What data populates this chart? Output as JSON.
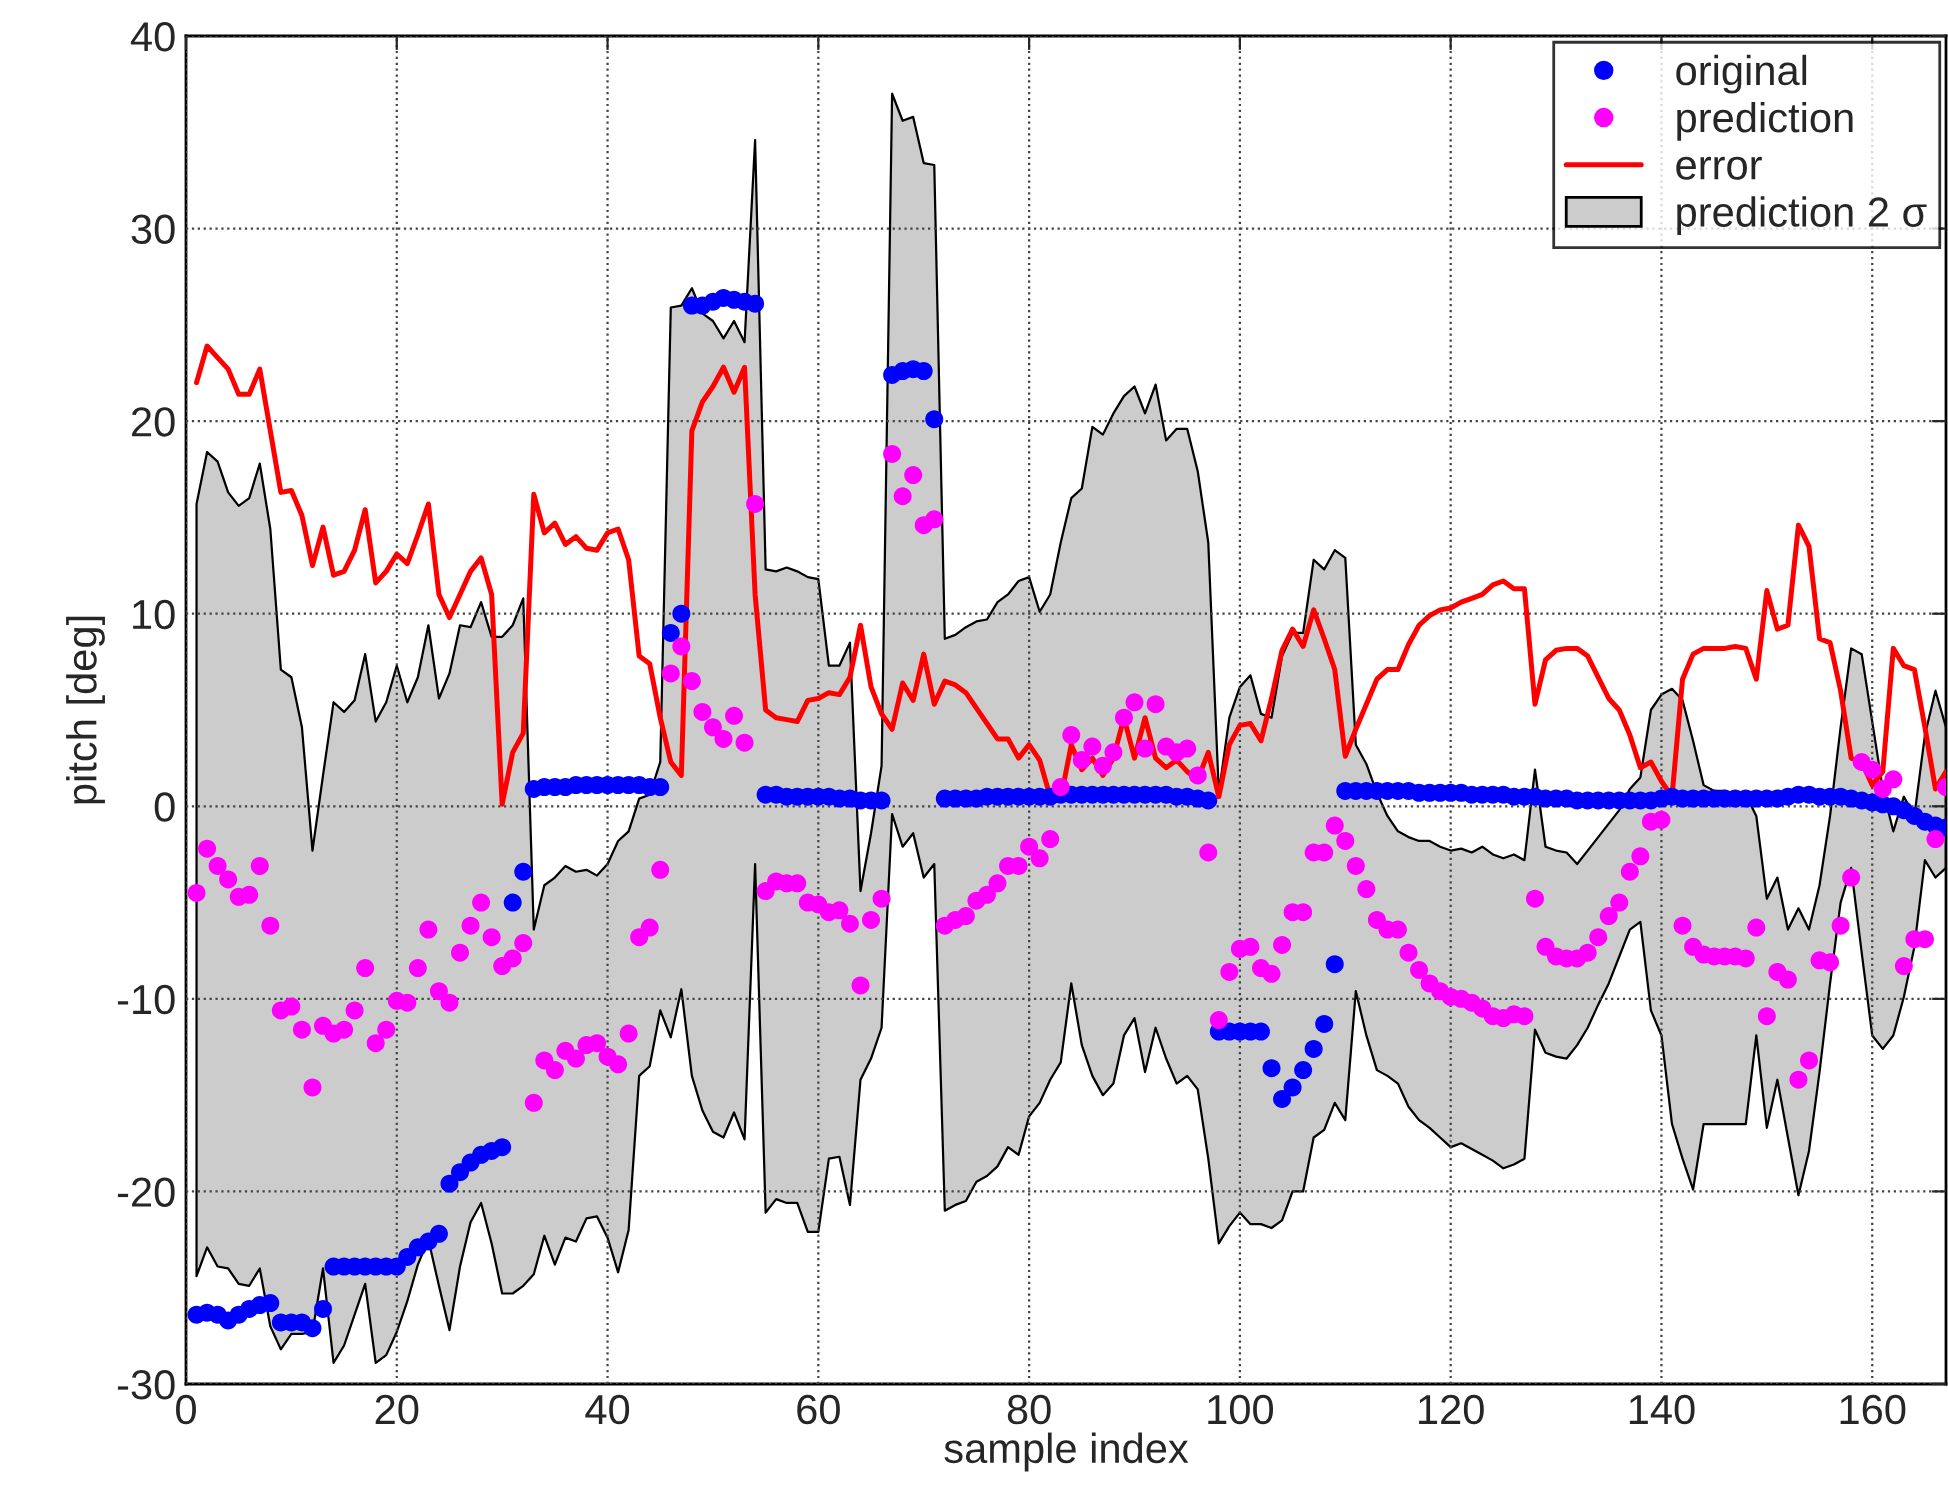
{
  "chart_data": {
    "type": "scatter",
    "xlabel": "sample index",
    "ylabel": "pitch [deg]",
    "x": [
      1,
      2,
      3,
      4,
      5,
      6,
      7,
      8,
      9,
      10,
      11,
      12,
      13,
      14,
      15,
      16,
      17,
      18,
      19,
      20,
      21,
      22,
      23,
      24,
      25,
      26,
      27,
      28,
      29,
      30,
      31,
      32,
      33,
      34,
      35,
      36,
      37,
      38,
      39,
      40,
      41,
      42,
      43,
      44,
      45,
      46,
      47,
      48,
      49,
      50,
      51,
      52,
      53,
      54,
      55,
      56,
      57,
      58,
      59,
      60,
      61,
      62,
      63,
      64,
      65,
      66,
      67,
      68,
      69,
      70,
      71,
      72,
      73,
      74,
      75,
      76,
      77,
      78,
      79,
      80,
      81,
      82,
      83,
      84,
      85,
      86,
      87,
      88,
      89,
      90,
      91,
      92,
      93,
      94,
      95,
      96,
      97,
      98,
      99,
      100,
      101,
      102,
      103,
      104,
      105,
      106,
      107,
      108,
      109,
      110,
      111,
      112,
      113,
      114,
      115,
      116,
      117,
      118,
      119,
      120,
      121,
      122,
      123,
      124,
      125,
      126,
      127,
      128,
      129,
      130,
      131,
      132,
      133,
      134,
      135,
      136,
      137,
      138,
      139,
      140,
      141,
      142,
      143,
      144,
      145,
      146,
      147,
      148,
      149,
      150,
      151,
      152,
      153,
      154,
      155,
      156,
      157,
      158,
      159,
      160,
      161,
      162,
      163,
      164,
      165,
      166,
      167
    ],
    "xlim": [
      0,
      167
    ],
    "xticks": [
      0,
      20,
      40,
      60,
      80,
      100,
      120,
      140,
      160
    ],
    "ylim": [
      -30,
      40
    ],
    "yticks": [
      -30,
      -20,
      -10,
      0,
      10,
      20,
      30,
      40
    ],
    "grid": true,
    "legend": "top right",
    "marker": "circle",
    "series": [
      {
        "name": "prediction 2 σ",
        "type": "area",
        "color": "#cccccc",
        "values": [
          null,
          null,
          null,
          null,
          null,
          null,
          null,
          null,
          null,
          null,
          null,
          null,
          null,
          null,
          null,
          null,
          null,
          null,
          null,
          null,
          null,
          null,
          null,
          null,
          null,
          null,
          null,
          null,
          null,
          null,
          null,
          null,
          null,
          null,
          null,
          null,
          null,
          null,
          null,
          null,
          null,
          null,
          null,
          null,
          null,
          null,
          null,
          null,
          null,
          null,
          null,
          null,
          null,
          null,
          null,
          null,
          null,
          null,
          null,
          null,
          null,
          null,
          null,
          null,
          null,
          null,
          null,
          null,
          null,
          null,
          null,
          null,
          null,
          null,
          null,
          null,
          null,
          null,
          null,
          null,
          null,
          null,
          null,
          null,
          null,
          null,
          null,
          null,
          null,
          null,
          null,
          null,
          null,
          null,
          null,
          null,
          null,
          null,
          null,
          null,
          null,
          null,
          null,
          null,
          null,
          null,
          null,
          null,
          null,
          null,
          null,
          null,
          null,
          null,
          null,
          null,
          null,
          null,
          null,
          null,
          null,
          null,
          null,
          null,
          null,
          null,
          null,
          null,
          null,
          null,
          null,
          null,
          null,
          null,
          null,
          null,
          null,
          null,
          null,
          null,
          null,
          null,
          null,
          null,
          null,
          null,
          null,
          null,
          null,
          null,
          null,
          null,
          null,
          null,
          null,
          null,
          null,
          null,
          null,
          null,
          null,
          null,
          null,
          null,
          null,
          null,
          null
        ],
        "upper": [
          15.7,
          18.4,
          17.9,
          16.3,
          15.6,
          16.0,
          17.8,
          14.4,
          7.1,
          6.7,
          4.1,
          -2.3,
          1.6,
          5.4,
          4.9,
          5.5,
          7.9,
          4.4,
          5.4,
          7.3,
          5.4,
          6.7,
          9.4,
          5.6,
          6.9,
          9.4,
          9.3,
          10.6,
          8.8,
          8.8,
          9.4,
          10.8,
          -6.4,
          -4.1,
          -3.7,
          -3.1,
          -3.4,
          -3.3,
          -3.6,
          -3.0,
          -1.8,
          -1.3,
          0.4,
          0.6,
          2.3,
          25.9,
          26.0,
          26.9,
          25.6,
          25.2,
          24.3,
          25.2,
          24.1,
          34.6,
          12.3,
          12.2,
          12.4,
          12.2,
          11.9,
          11.8,
          7.3,
          7.3,
          8.5,
          -4.4,
          -1.4,
          2.1,
          37.0,
          35.6,
          35.8,
          33.4,
          33.3,
          8.7,
          8.9,
          9.3,
          9.6,
          9.7,
          10.6,
          11.0,
          11.7,
          11.9,
          10.1,
          11.0,
          13.7,
          16.0,
          16.5,
          19.7,
          19.3,
          20.4,
          21.3,
          21.8,
          20.4,
          21.9,
          19.0,
          19.6,
          19.6,
          17.4,
          13.7,
          0.7,
          4.6,
          6.2,
          6.8,
          4.8,
          4.6,
          7.8,
          9.0,
          9.0,
          12.8,
          12.3,
          13.3,
          12.9,
          3.2,
          2.2,
          0.7,
          -0.5,
          -1.3,
          -1.6,
          -1.8,
          -1.8,
          -2.1,
          -2.3,
          -2.2,
          -2.4,
          -2.1,
          -2.5,
          -2.7,
          -2.5,
          -2.8,
          1.9,
          -2.1,
          -2.3,
          -2.4,
          -3.0,
          -2.3,
          -1.6,
          -0.9,
          -0.2,
          0.9,
          1.5,
          5.0,
          5.8,
          6.1,
          5.5,
          3.4,
          1.1,
          0.8,
          0.8,
          0.6,
          0.6,
          -0.5,
          -4.8,
          -3.7,
          -6.4,
          -5.3,
          -6.4,
          -4.1,
          -0.5,
          4.1,
          8.2,
          7.9,
          4.4,
          0.9,
          -1.3,
          0.5,
          -0.5,
          3.7,
          6.0,
          4.1
        ],
        "lower": [
          -24.4,
          -22.9,
          -23.9,
          -24.0,
          -24.8,
          -24.9,
          -24.0,
          -27.0,
          -28.2,
          -27.4,
          -27.4,
          -27.3,
          -24.0,
          -28.9,
          -28.0,
          -26.4,
          -24.8,
          -28.9,
          -28.5,
          -27.3,
          -25.7,
          -23.8,
          -22.5,
          -24.9,
          -27.2,
          -23.9,
          -21.6,
          -20.6,
          -22.7,
          -25.3,
          -25.3,
          -24.9,
          -24.3,
          -22.3,
          -23.8,
          -22.4,
          -22.6,
          -21.4,
          -21.3,
          -22.4,
          -24.2,
          -22.0,
          -14.0,
          -13.5,
          -10.6,
          -12.0,
          -9.5,
          -14.0,
          -15.8,
          -16.9,
          -17.2,
          -15.9,
          -17.3,
          -3.0,
          -21.1,
          -20.4,
          -20.6,
          -20.6,
          -22.1,
          -22.1,
          -18.3,
          -18.2,
          -20.7,
          -14.2,
          -13.1,
          -11.5,
          -0.4,
          -2.1,
          -1.4,
          -3.7,
          -3.0,
          -21.0,
          -20.7,
          -20.5,
          -19.5,
          -19.2,
          -18.7,
          -17.7,
          -18.1,
          -16.1,
          -15.4,
          -14.2,
          -13.3,
          -9.2,
          -12.4,
          -14.0,
          -15.0,
          -14.4,
          -11.9,
          -11.0,
          -13.8,
          -11.5,
          -13.1,
          -14.4,
          -14.0,
          -14.7,
          -18.3,
          -22.7,
          -21.8,
          -21.1,
          -21.7,
          -21.7,
          -21.9,
          -21.5,
          -20.0,
          -20.0,
          -17.2,
          -16.8,
          -15.4,
          -16.3,
          -9.6,
          -11.9,
          -13.7,
          -14.0,
          -14.4,
          -15.6,
          -16.3,
          -16.7,
          -17.2,
          -17.7,
          -17.5,
          -17.8,
          -18.1,
          -18.4,
          -18.8,
          -18.6,
          -18.3,
          -11.6,
          -12.8,
          -13.0,
          -13.1,
          -12.4,
          -11.5,
          -10.3,
          -9.2,
          -7.8,
          -6.4,
          -6.0,
          -10.6,
          -11.9,
          -16.5,
          -18.3,
          -19.9,
          -16.5,
          -16.5,
          -16.5,
          -16.5,
          -16.5,
          -11.9,
          -16.7,
          -14.2,
          -17.2,
          -20.2,
          -17.9,
          -13.8,
          -9.2,
          -5.0,
          -3.2,
          -7.6,
          -11.9,
          -12.6,
          -11.9,
          -9.9,
          -7.3,
          -2.8,
          -3.7,
          -3.2
        ]
      },
      {
        "name": "error",
        "type": "line",
        "marker": "none",
        "color": "#ff0000",
        "values": [
          22.0,
          23.9,
          23.3,
          22.7,
          21.4,
          21.4,
          22.7,
          19.5,
          16.3,
          16.4,
          15.1,
          12.5,
          14.5,
          12.0,
          12.2,
          13.3,
          15.4,
          11.6,
          12.2,
          13.1,
          12.6,
          14.1,
          15.7,
          11.0,
          9.8,
          11.0,
          12.2,
          12.9,
          11.0,
          0.1,
          2.8,
          3.8,
          16.2,
          14.2,
          14.7,
          13.6,
          14.0,
          13.4,
          13.3,
          14.2,
          14.4,
          12.8,
          7.8,
          7.4,
          4.6,
          2.3,
          1.6,
          19.5,
          21.0,
          21.8,
          22.8,
          21.5,
          22.8,
          11.0,
          5.0,
          4.6,
          4.5,
          4.4,
          5.5,
          5.6,
          5.9,
          5.8,
          6.7,
          9.4,
          6.2,
          4.8,
          4.0,
          6.4,
          5.5,
          7.9,
          5.3,
          6.5,
          6.3,
          5.9,
          5.1,
          4.3,
          3.5,
          3.5,
          2.5,
          3.2,
          2.4,
          0.5,
          0.4,
          3.2,
          1.9,
          2.5,
          1.6,
          2.5,
          4.6,
          2.5,
          4.6,
          2.5,
          2.0,
          2.4,
          1.8,
          1.4,
          2.8,
          0.5,
          3.2,
          4.2,
          4.3,
          3.4,
          5.6,
          8.1,
          9.2,
          8.3,
          10.2,
          8.7,
          7.1,
          2.6,
          4.0,
          5.3,
          6.6,
          7.1,
          7.1,
          8.4,
          9.4,
          9.9,
          10.2,
          10.3,
          10.6,
          10.8,
          11.0,
          11.5,
          11.7,
          11.3,
          11.3,
          5.3,
          7.6,
          8.1,
          8.2,
          8.2,
          7.8,
          6.7,
          5.6,
          5.0,
          3.7,
          2.0,
          2.3,
          1.3,
          0.5,
          6.6,
          7.9,
          8.2,
          8.2,
          8.2,
          8.3,
          8.2,
          6.6,
          11.2,
          9.2,
          9.4,
          14.6,
          13.5,
          8.7,
          8.5,
          6.0,
          2.5,
          2.3,
          1.1,
          1.8,
          8.2,
          7.3,
          7.1,
          4.1,
          0.9,
          1.8
        ]
      },
      {
        "name": "original",
        "color": "#0000ff",
        "values": [
          -26.4,
          -26.3,
          -26.4,
          -26.7,
          -26.4,
          -26.1,
          -25.9,
          -25.8,
          -26.8,
          -26.8,
          -26.8,
          -27.1,
          -26.1,
          -23.9,
          -23.9,
          -23.9,
          -23.9,
          -23.9,
          -23.9,
          -23.9,
          -23.4,
          -22.9,
          -22.6,
          -22.2,
          -19.6,
          -19.0,
          -18.5,
          -18.1,
          -17.9,
          -17.7,
          -5.0,
          -3.4,
          0.9,
          1.0,
          1.0,
          1.0,
          1.1,
          1.1,
          1.1,
          1.1,
          1.1,
          1.1,
          1.1,
          1.0,
          1.0,
          9.0,
          10.0,
          26.0,
          26.0,
          26.2,
          26.4,
          26.3,
          26.2,
          26.1,
          0.6,
          0.6,
          0.5,
          0.5,
          0.5,
          0.5,
          0.5,
          0.4,
          0.4,
          0.3,
          0.3,
          0.3,
          22.4,
          22.6,
          22.7,
          22.6,
          20.1,
          0.4,
          0.4,
          0.4,
          0.4,
          0.5,
          0.5,
          0.5,
          0.5,
          0.5,
          0.5,
          0.5,
          0.6,
          0.6,
          0.6,
          0.6,
          0.6,
          0.6,
          0.6,
          0.6,
          0.6,
          0.6,
          0.6,
          0.5,
          0.5,
          0.4,
          0.3,
          -11.7,
          -11.7,
          -11.7,
          -11.7,
          -11.7,
          -13.6,
          -15.2,
          -14.6,
          -13.7,
          -12.6,
          -11.3,
          -8.2,
          0.8,
          0.8,
          0.8,
          0.8,
          0.8,
          0.8,
          0.8,
          0.7,
          0.7,
          0.7,
          0.7,
          0.7,
          0.6,
          0.6,
          0.6,
          0.6,
          0.5,
          0.5,
          0.5,
          0.4,
          0.4,
          0.4,
          0.3,
          0.3,
          0.3,
          0.3,
          0.3,
          0.3,
          0.3,
          0.3,
          0.4,
          0.5,
          0.4,
          0.4,
          0.4,
          0.4,
          0.4,
          0.4,
          0.4,
          0.4,
          0.4,
          0.4,
          0.5,
          0.6,
          0.6,
          0.5,
          0.5,
          0.5,
          0.4,
          0.3,
          0.2,
          0.1,
          0.0,
          -0.2,
          -0.5,
          -0.8,
          -1.0,
          -1.1
        ]
      },
      {
        "name": "prediction",
        "color": "#ff00ff",
        "values": [
          -4.5,
          -2.2,
          -3.1,
          -3.8,
          -4.7,
          -4.6,
          -3.1,
          -6.2,
          -10.6,
          -10.4,
          -11.6,
          -14.6,
          -11.4,
          -11.8,
          -11.6,
          -10.6,
          -8.4,
          -12.3,
          -11.6,
          -10.1,
          -10.2,
          -8.4,
          -6.4,
          -9.6,
          -10.2,
          -7.6,
          -6.2,
          -5.0,
          -6.8,
          -8.3,
          -7.9,
          -7.1,
          -15.4,
          -13.2,
          -13.7,
          -12.7,
          -13.1,
          -12.4,
          -12.3,
          -13.0,
          -13.4,
          -11.8,
          -6.8,
          -6.3,
          -3.3,
          6.9,
          8.3,
          6.5,
          4.9,
          4.1,
          3.5,
          4.7,
          3.3,
          15.7,
          -4.4,
          -3.9,
          -4.0,
          -4.0,
          -5.0,
          -5.1,
          -5.5,
          -5.4,
          -6.1,
          -9.3,
          -5.9,
          -4.8,
          18.3,
          16.1,
          17.2,
          14.6,
          14.9,
          -6.2,
          -5.9,
          -5.7,
          -4.9,
          -4.6,
          -4.0,
          -3.1,
          -3.1,
          -2.1,
          -2.7,
          -1.7,
          1.0,
          3.7,
          2.4,
          3.1,
          2.1,
          2.8,
          4.6,
          5.4,
          3.0,
          5.3,
          3.1,
          2.8,
          3.0,
          1.6,
          -2.4,
          -11.1,
          -8.6,
          -7.4,
          -7.3,
          -8.4,
          -8.7,
          -7.2,
          -5.5,
          -5.5,
          -2.4,
          -2.4,
          -1.0,
          -1.8,
          -3.1,
          -4.3,
          -5.9,
          -6.4,
          -6.4,
          -7.6,
          -8.5,
          -9.2,
          -9.6,
          -9.9,
          -10.0,
          -10.2,
          -10.5,
          -10.9,
          -11.0,
          -10.8,
          -10.9,
          -4.8,
          -7.3,
          -7.8,
          -7.9,
          -7.9,
          -7.6,
          -6.8,
          -5.7,
          -5.0,
          -3.4,
          -2.6,
          -0.8,
          -0.7,
          null,
          -6.2,
          -7.3,
          -7.7,
          -7.8,
          -7.8,
          -7.8,
          -7.9,
          -6.3,
          -10.9,
          -8.6,
          -9.0,
          -14.2,
          -13.2,
          -8.0,
          -8.1,
          -6.2,
          -3.7,
          2.3,
          1.9,
          0.9,
          1.4,
          -8.3,
          -6.9,
          -6.9,
          -1.7,
          1.0
        ]
      }
    ]
  }
}
